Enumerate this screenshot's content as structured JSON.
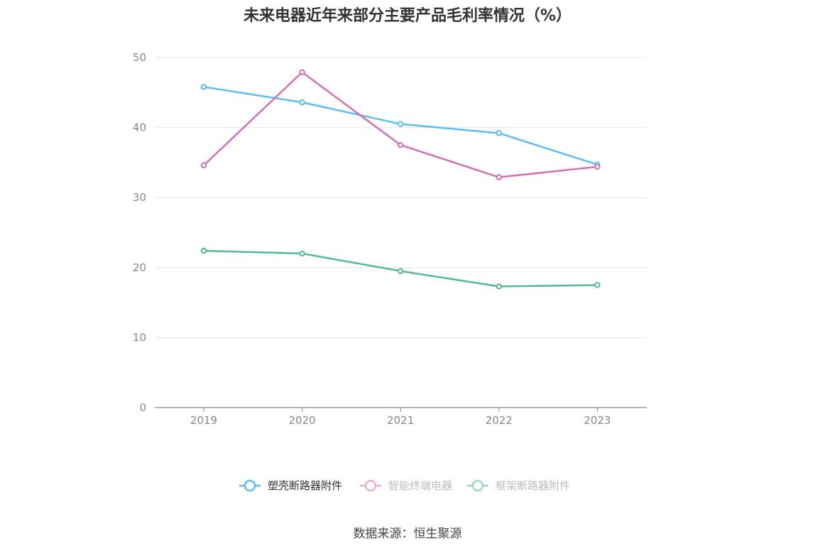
{
  "chart_data": {
    "type": "line",
    "title": "未来电器近年来部分主要产品毛利率情况（%）",
    "categories": [
      "2019",
      "2020",
      "2021",
      "2022",
      "2023"
    ],
    "ylim": [
      0,
      50
    ],
    "yticks": [
      0,
      10,
      20,
      30,
      40,
      50
    ],
    "grid": true,
    "legend_position": "bottom",
    "series": [
      {
        "name": "塑壳断路器附件",
        "color": "#5bbdf0",
        "values": [
          45.8,
          43.6,
          40.5,
          39.2,
          34.7
        ]
      },
      {
        "name": "智能终端电器",
        "color": "#d36fb3",
        "values": [
          34.6,
          47.9,
          37.5,
          32.9,
          34.4
        ]
      },
      {
        "name": "框架断路器附件",
        "color": "#52b89a",
        "values": [
          22.4,
          22.0,
          19.5,
          17.3,
          17.5
        ]
      }
    ]
  },
  "source": "数据来源：恒生聚源"
}
